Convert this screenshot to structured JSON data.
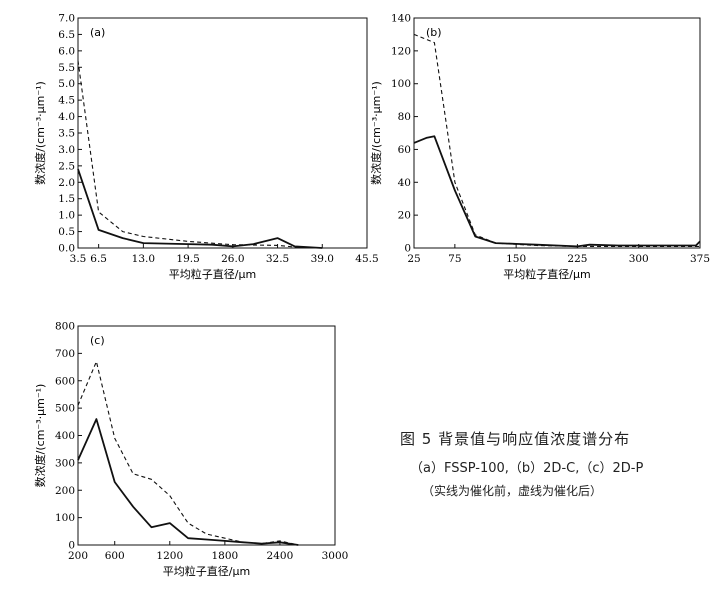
{
  "figure": {
    "caption_title": "图 5   背景值与响应值浓度谱分布",
    "caption_sub": "（a）FSSP-100,（b）2D-C,（c）2D-P",
    "caption_note": "（实线为催化前，虚线为催化后）"
  },
  "chart_data": [
    {
      "type": "line",
      "panel_label": "(a)",
      "xlabel": "平均粒子直径/μm",
      "ylabel": "数浓度/(cm⁻³·μm⁻¹)",
      "xlim": [
        3.5,
        45.5
      ],
      "ylim": [
        0,
        7.0
      ],
      "x_ticks": [
        3.5,
        6.5,
        13.0,
        19.5,
        26.0,
        32.5,
        39.0,
        45.5
      ],
      "x_tick_labels": [
        "3.5",
        "6.5",
        "13.0",
        "19.5",
        "26.0",
        "32.5",
        "39.0",
        "45.5"
      ],
      "y_ticks": [
        0,
        0.5,
        1.0,
        1.5,
        2.0,
        2.5,
        3.0,
        3.5,
        4.0,
        4.5,
        5.0,
        5.5,
        6.0,
        6.5,
        7.0
      ],
      "y_tick_labels": [
        "0.0",
        "0.5",
        "1.0",
        "1.5",
        "2.0",
        "2.5",
        "3.0",
        "3.5",
        "4.0",
        "4.5",
        "5.0",
        "5.5",
        "6.0",
        "6.5",
        "7.0"
      ],
      "series": [
        {
          "style": "solid",
          "x": [
            3.5,
            6.5,
            10,
            13,
            19.5,
            23,
            26,
            29,
            32.5,
            35,
            39
          ],
          "y": [
            2.4,
            0.55,
            0.3,
            0.15,
            0.12,
            0.1,
            0.05,
            0.12,
            0.3,
            0.05,
            0.0
          ]
        },
        {
          "style": "dashed",
          "x": [
            3.5,
            6.5,
            10,
            13,
            19.5,
            26,
            32.5,
            35,
            39
          ],
          "y": [
            5.7,
            1.1,
            0.5,
            0.35,
            0.2,
            0.1,
            0.08,
            0.03,
            0.0
          ]
        }
      ]
    },
    {
      "type": "line",
      "panel_label": "(b)",
      "xlabel": "平均粒子直径/μm",
      "ylabel": "数浓度/(cm⁻³·μm⁻¹)",
      "xlim": [
        25,
        375
      ],
      "ylim": [
        0,
        140
      ],
      "x_ticks": [
        25,
        75,
        150,
        225,
        300,
        375
      ],
      "x_tick_labels": [
        "25",
        "75",
        "150",
        "225",
        "300",
        "375"
      ],
      "y_ticks": [
        0,
        20,
        40,
        60,
        80,
        100,
        120,
        140
      ],
      "y_tick_labels": [
        "0",
        "20",
        "40",
        "60",
        "80",
        "100",
        "120",
        "140"
      ],
      "series": [
        {
          "style": "solid",
          "x": [
            25,
            40,
            50,
            75,
            100,
            125,
            150,
            175,
            225,
            240,
            275,
            300,
            325,
            350,
            370,
            375
          ],
          "y": [
            64,
            67,
            68,
            35,
            7,
            3,
            2.5,
            2,
            1,
            2,
            1.5,
            1.5,
            1.5,
            1.5,
            1.5,
            4
          ]
        },
        {
          "style": "dashed",
          "x": [
            25,
            50,
            75,
            100,
            125,
            175,
            225,
            300,
            375
          ],
          "y": [
            130,
            125,
            40,
            8,
            3,
            1.5,
            1,
            1,
            1
          ]
        }
      ]
    },
    {
      "type": "line",
      "panel_label": "(c)",
      "xlabel": "平均粒子直径/μm",
      "ylabel": "数浓度/(cm⁻³·μm⁻¹)",
      "xlim": [
        200,
        3000
      ],
      "ylim": [
        0,
        800
      ],
      "x_ticks": [
        200,
        600,
        1200,
        1800,
        2400,
        3000
      ],
      "x_tick_labels": [
        "200",
        "600",
        "1200",
        "1800",
        "2400",
        "3000"
      ],
      "y_ticks": [
        0,
        100,
        200,
        300,
        400,
        500,
        600,
        700,
        800
      ],
      "y_tick_labels": [
        "0",
        "100",
        "200",
        "300",
        "400",
        "500",
        "600",
        "700",
        "800"
      ],
      "series": [
        {
          "style": "solid",
          "x": [
            200,
            400,
            600,
            800,
            1000,
            1200,
            1400,
            1600,
            1800,
            2000,
            2200,
            2400,
            2600
          ],
          "y": [
            310,
            460,
            230,
            140,
            65,
            80,
            25,
            20,
            15,
            10,
            5,
            10,
            0
          ]
        },
        {
          "style": "dashed",
          "x": [
            200,
            400,
            600,
            800,
            1000,
            1200,
            1400,
            1600,
            1800,
            2000,
            2200,
            2400,
            2600
          ],
          "y": [
            510,
            670,
            390,
            260,
            240,
            180,
            80,
            40,
            25,
            10,
            5,
            15,
            0
          ]
        }
      ]
    }
  ]
}
